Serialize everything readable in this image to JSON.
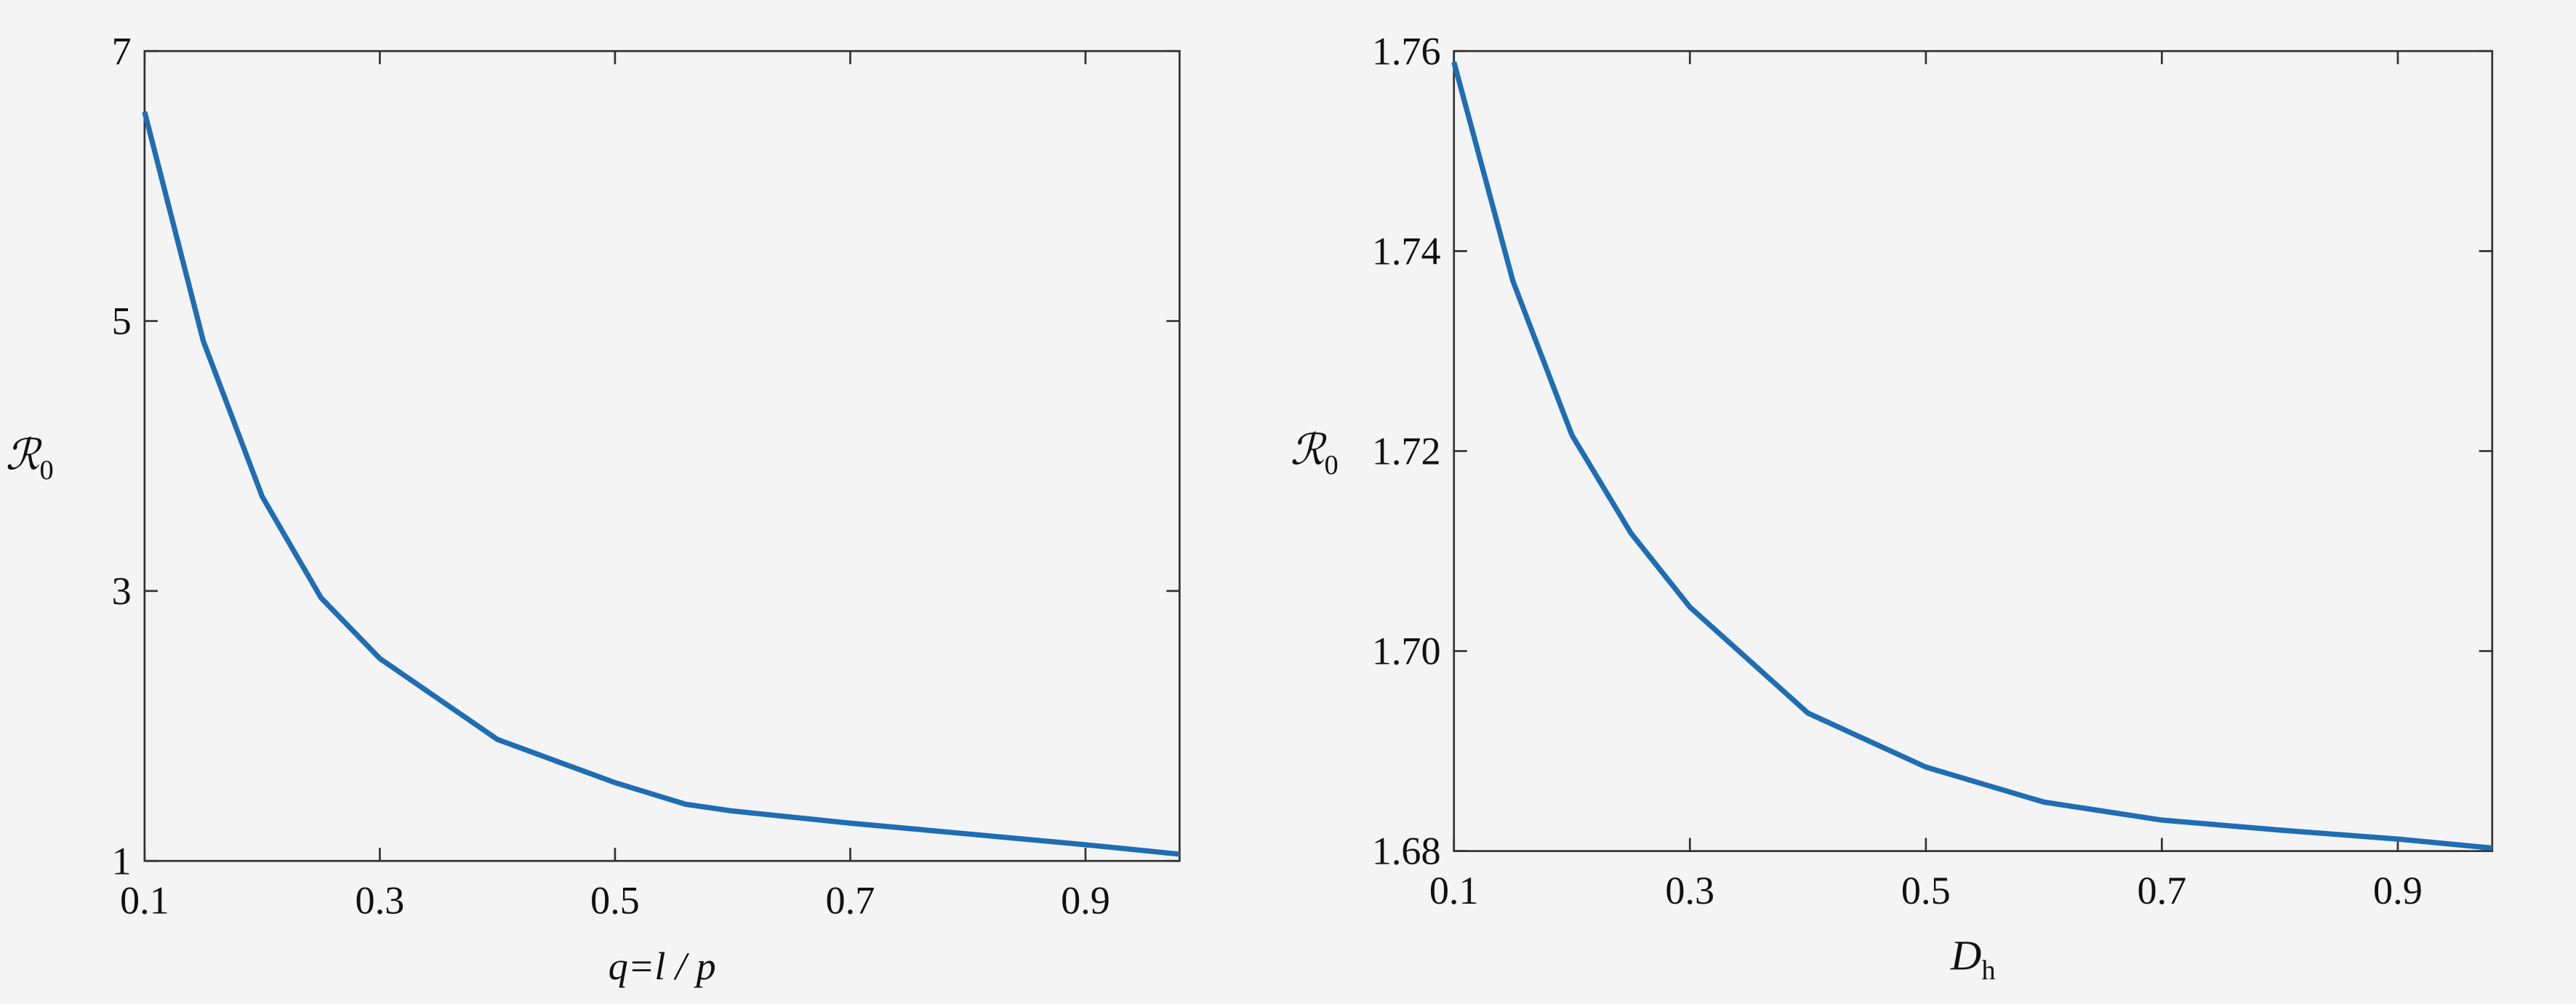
{
  "chart_data": [
    {
      "type": "line",
      "x_label": "q=l / p",
      "y_label": {
        "symbol": "ℛ",
        "subscript": "0"
      },
      "x": [
        0.1,
        0.15,
        0.2,
        0.25,
        0.3,
        0.4,
        0.5,
        0.56,
        0.6,
        0.7,
        0.8,
        0.9,
        0.98
      ],
      "series": [
        {
          "color": "#1f6db3",
          "values": [
            6.55,
            4.85,
            3.7,
            2.95,
            2.5,
            1.9,
            1.58,
            1.42,
            1.37,
            1.28,
            1.2,
            1.12,
            1.05
          ]
        }
      ],
      "xlim": [
        0.1,
        0.98
      ],
      "xticks": [
        0.1,
        0.3,
        0.5,
        0.7,
        0.9
      ],
      "ylim": [
        1,
        7
      ],
      "yticks": [
        1,
        3,
        5,
        7
      ]
    },
    {
      "type": "line",
      "x_label": {
        "symbol": "D",
        "subscript": "h"
      },
      "y_label": {
        "symbol": "ℛ",
        "subscript": "0"
      },
      "x": [
        0.1,
        0.15,
        0.2,
        0.25,
        0.3,
        0.4,
        0.5,
        0.6,
        0.7,
        0.8,
        0.9,
        0.98
      ],
      "series": [
        {
          "color": "#1f6db3",
          "values": [
            1.7589,
            1.737,
            1.7216,
            1.7118,
            1.7044,
            1.6938,
            1.6884,
            1.6849,
            1.6831,
            1.6821,
            1.6812,
            1.6803
          ]
        }
      ],
      "xlim": [
        0.1,
        0.98
      ],
      "xticks": [
        0.1,
        0.3,
        0.5,
        0.7,
        0.9
      ],
      "ylim": [
        1.68,
        1.76
      ],
      "yticks": [
        1.68,
        {
          "value": 1.7,
          "label": "1.70"
        },
        1.72,
        1.74,
        1.76
      ]
    }
  ]
}
